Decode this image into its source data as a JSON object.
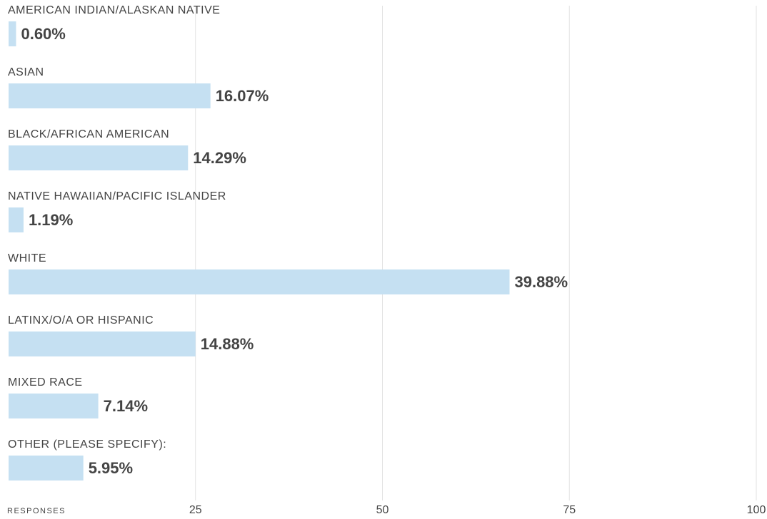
{
  "chart_data": {
    "type": "hbar",
    "categories": [
      "AMERICAN INDIAN/ALASKAN NATIVE",
      "ASIAN",
      "BLACK/AFRICAN AMERICAN",
      "NATIVE HAWAIIAN/PACIFIC ISLANDER",
      "WHITE",
      "LATINX/O/A OR HISPANIC",
      "MIXED RACE",
      "OTHER (PLEASE SPECIFY):"
    ],
    "values": [
      1,
      27,
      24,
      2,
      67,
      25,
      12,
      10
    ],
    "percent_labels": [
      "0.60%",
      "16.07%",
      "14.29%",
      "1.19%",
      "39.88%",
      "14.88%",
      "7.14%",
      "5.95%"
    ],
    "color": "#c5e0f2",
    "xlabel": "RESPONSES",
    "xlim": [
      0,
      100
    ],
    "xticks": [
      25,
      50,
      75,
      100
    ],
    "grid": true
  }
}
